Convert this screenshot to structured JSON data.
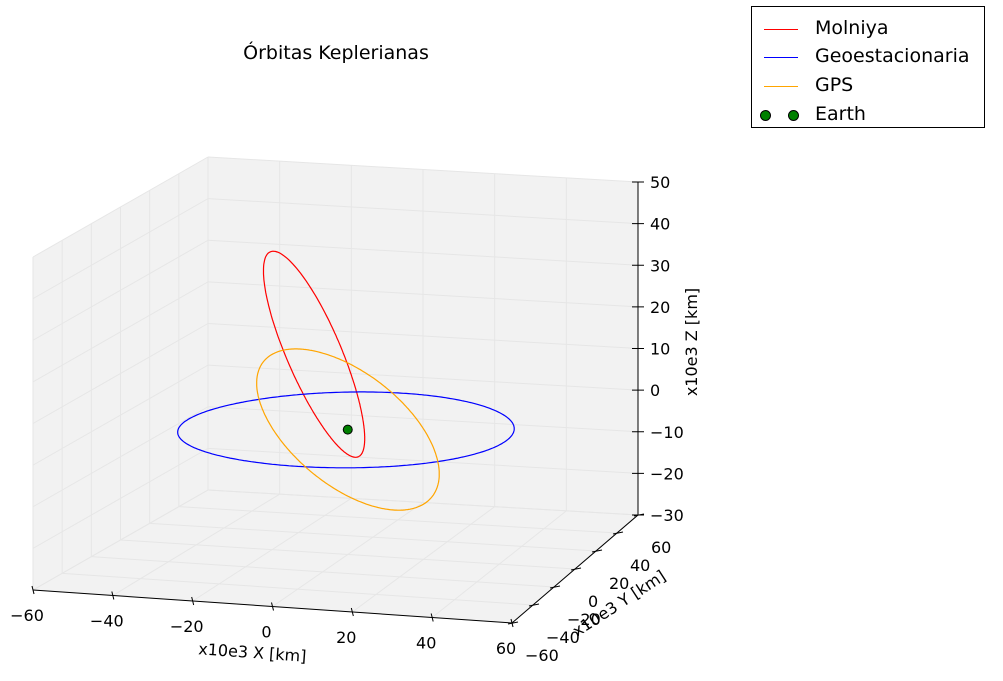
{
  "chart_data": {
    "type": "line",
    "projection": "3d",
    "title": "Órbitas Keplerianas",
    "xlabel": "x10e3 X [km]",
    "ylabel": "x10e3 Y [km]",
    "zlabel": "x10e3 Z [km]",
    "xlim": [
      -60,
      60
    ],
    "ylim": [
      -60,
      60
    ],
    "zlim": [
      -30,
      50
    ],
    "xticks": [
      "−60",
      "−40",
      "−20",
      "0",
      "20",
      "40",
      "60"
    ],
    "yticks": [
      "−60",
      "−40",
      "−20",
      "0",
      "20",
      "40",
      "60"
    ],
    "zticks": [
      "−30",
      "−20",
      "−10",
      "0",
      "10",
      "20",
      "30",
      "40",
      "50"
    ],
    "grid": true,
    "legend_position": "top-right",
    "series": [
      {
        "name": "Molniya",
        "color": "#ff0000",
        "line": "solid",
        "orbit": {
          "semi_major_axis": 26.6,
          "eccentricity": 0.74,
          "inclination_deg": 63.4,
          "raan_deg": 90,
          "arg_perigee_deg": 270
        }
      },
      {
        "name": "Geoestacionaria",
        "color": "#0000ff",
        "line": "solid",
        "orbit": {
          "semi_major_axis": 42.16,
          "eccentricity": 0.0,
          "inclination_deg": 0,
          "raan_deg": 0,
          "arg_perigee_deg": 0
        }
      },
      {
        "name": "GPS",
        "color": "#ffa500",
        "line": "solid",
        "orbit": {
          "semi_major_axis": 26.56,
          "eccentricity": 0.0,
          "inclination_deg": 55,
          "raan_deg": 160,
          "arg_perigee_deg": 0
        }
      },
      {
        "name": "Earth",
        "color": "#008000",
        "marker": "o",
        "points": [
          [
            0,
            0,
            0
          ]
        ]
      }
    ]
  }
}
